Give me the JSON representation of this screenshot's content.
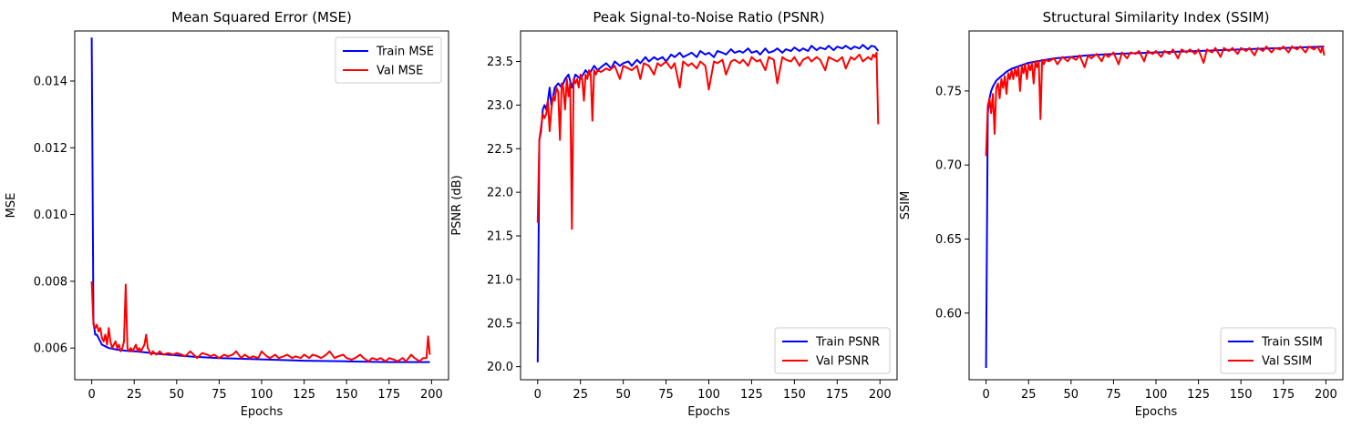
{
  "chart_data": [
    {
      "type": "line",
      "title": "Mean Squared Error (MSE)",
      "xlabel": "Epochs",
      "ylabel": "MSE",
      "xlim": [
        -10,
        210
      ],
      "ylim": [
        0.00505,
        0.0155
      ],
      "xticks": [
        0,
        25,
        50,
        75,
        100,
        125,
        150,
        175,
        200
      ],
      "xtick_labels": [
        "0",
        "25",
        "50",
        "75",
        "100",
        "125",
        "150",
        "175",
        "200"
      ],
      "yticks": [
        0.006,
        0.008,
        0.01,
        0.012,
        0.014
      ],
      "ytick_labels": [
        "0.006",
        "0.008",
        "0.010",
        "0.012",
        "0.014"
      ],
      "legend_position": "top-right",
      "series": [
        {
          "name": "Train MSE",
          "color": "#0000ff",
          "x": [
            0,
            1,
            2,
            3,
            4,
            5,
            6,
            8,
            10,
            12,
            15,
            20,
            25,
            30,
            40,
            50,
            60,
            75,
            100,
            125,
            150,
            175,
            199
          ],
          "values": [
            0.0153,
            0.0068,
            0.0064,
            0.0064,
            0.0063,
            0.0062,
            0.0061,
            0.00605,
            0.006,
            0.00598,
            0.00595,
            0.00592,
            0.0059,
            0.00588,
            0.00582,
            0.00578,
            0.00574,
            0.0057,
            0.00566,
            0.00562,
            0.0056,
            0.00558,
            0.00558
          ]
        },
        {
          "name": "Val MSE",
          "color": "#ff0000",
          "x": [
            0,
            1,
            2,
            3,
            4,
            5,
            6,
            7,
            8,
            9,
            10,
            11,
            12,
            13,
            14,
            15,
            16,
            17,
            18,
            19,
            20,
            21,
            22,
            23,
            24,
            25,
            26,
            27,
            28,
            29,
            30,
            31,
            32,
            33,
            34,
            35,
            36,
            38,
            40,
            42,
            45,
            48,
            50,
            53,
            55,
            58,
            60,
            62,
            65,
            68,
            70,
            72,
            75,
            78,
            80,
            83,
            85,
            88,
            90,
            93,
            95,
            98,
            100,
            103,
            105,
            108,
            110,
            113,
            115,
            118,
            120,
            123,
            125,
            128,
            130,
            133,
            135,
            138,
            140,
            143,
            145,
            148,
            150,
            153,
            155,
            158,
            160,
            163,
            165,
            168,
            170,
            173,
            175,
            178,
            180,
            183,
            185,
            188,
            190,
            193,
            195,
            197,
            198,
            199
          ],
          "values": [
            0.008,
            0.0067,
            0.0066,
            0.0067,
            0.0065,
            0.0066,
            0.0063,
            0.0062,
            0.0064,
            0.0061,
            0.0066,
            0.0062,
            0.006,
            0.0061,
            0.0062,
            0.006,
            0.0061,
            0.0059,
            0.006,
            0.0062,
            0.0079,
            0.006,
            0.0059,
            0.006,
            0.0059,
            0.006,
            0.0061,
            0.0059,
            0.006,
            0.0059,
            0.006,
            0.0061,
            0.0064,
            0.006,
            0.0059,
            0.0058,
            0.0059,
            0.0058,
            0.0059,
            0.0058,
            0.00585,
            0.0058,
            0.00585,
            0.0058,
            0.00575,
            0.0059,
            0.0058,
            0.0057,
            0.00585,
            0.0058,
            0.00575,
            0.0058,
            0.0057,
            0.0058,
            0.00575,
            0.0058,
            0.0059,
            0.0057,
            0.0058,
            0.0057,
            0.00575,
            0.0057,
            0.0059,
            0.00575,
            0.0057,
            0.0058,
            0.0057,
            0.00575,
            0.0058,
            0.0057,
            0.00575,
            0.0057,
            0.0058,
            0.0057,
            0.0058,
            0.00575,
            0.0057,
            0.0058,
            0.0059,
            0.0057,
            0.00575,
            0.0058,
            0.0057,
            0.00565,
            0.0057,
            0.0058,
            0.0057,
            0.0056,
            0.0057,
            0.00565,
            0.0057,
            0.0056,
            0.0057,
            0.00565,
            0.0056,
            0.0057,
            0.0056,
            0.0058,
            0.0057,
            0.0056,
            0.0057,
            0.0057,
            0.00635,
            0.0058
          ]
        }
      ]
    },
    {
      "type": "line",
      "title": "Peak Signal-to-Noise Ratio (PSNR)",
      "xlabel": "Epochs",
      "ylabel": "PSNR (dB)",
      "xlim": [
        -10,
        210
      ],
      "ylim": [
        19.85,
        23.85
      ],
      "xticks": [
        0,
        25,
        50,
        75,
        100,
        125,
        150,
        175,
        200
      ],
      "xtick_labels": [
        "0",
        "25",
        "50",
        "75",
        "100",
        "125",
        "150",
        "175",
        "200"
      ],
      "yticks": [
        20.0,
        20.5,
        21.0,
        21.5,
        22.0,
        22.5,
        23.0,
        23.5
      ],
      "ytick_labels": [
        "20.0",
        "20.5",
        "21.0",
        "21.5",
        "22.0",
        "22.5",
        "23.0",
        "23.5"
      ],
      "legend_position": "bottom-right",
      "series": [
        {
          "name": "Train PSNR",
          "color": "#0000ff",
          "x": [
            0,
            1,
            2,
            3,
            4,
            5,
            6,
            7,
            8,
            9,
            10,
            12,
            14,
            16,
            18,
            20,
            22,
            25,
            28,
            30,
            33,
            35,
            38,
            40,
            43,
            45,
            48,
            50,
            53,
            55,
            58,
            60,
            63,
            65,
            68,
            70,
            73,
            75,
            78,
            80,
            83,
            85,
            88,
            90,
            93,
            95,
            98,
            100,
            103,
            105,
            108,
            110,
            113,
            115,
            118,
            120,
            123,
            125,
            128,
            130,
            133,
            135,
            138,
            140,
            143,
            145,
            148,
            150,
            153,
            155,
            158,
            160,
            163,
            165,
            168,
            170,
            173,
            175,
            178,
            180,
            183,
            185,
            188,
            190,
            193,
            195,
            197,
            199
          ],
          "values": [
            20.05,
            22.6,
            22.7,
            22.95,
            23.0,
            22.95,
            23.05,
            23.2,
            23.0,
            23.1,
            23.2,
            23.25,
            23.2,
            23.3,
            23.35,
            23.2,
            23.35,
            23.3,
            23.4,
            23.35,
            23.45,
            23.4,
            23.45,
            23.48,
            23.42,
            23.5,
            23.45,
            23.48,
            23.5,
            23.45,
            23.52,
            23.48,
            23.55,
            23.5,
            23.55,
            23.52,
            23.55,
            23.5,
            23.58,
            23.55,
            23.6,
            23.55,
            23.58,
            23.6,
            23.55,
            23.62,
            23.58,
            23.6,
            23.55,
            23.62,
            23.6,
            23.58,
            23.64,
            23.6,
            23.62,
            23.6,
            23.65,
            23.6,
            23.62,
            23.58,
            23.65,
            23.6,
            23.62,
            23.65,
            23.6,
            23.64,
            23.62,
            23.66,
            23.62,
            23.65,
            23.62,
            23.68,
            23.63,
            23.66,
            23.64,
            23.68,
            23.63,
            23.67,
            23.65,
            23.68,
            23.64,
            23.67,
            23.65,
            23.69,
            23.64,
            23.68,
            23.67,
            23.62
          ]
        },
        {
          "name": "Val PSNR",
          "color": "#ff0000",
          "x": [
            0,
            1,
            2,
            3,
            4,
            5,
            6,
            7,
            8,
            9,
            10,
            11,
            12,
            13,
            14,
            15,
            16,
            17,
            18,
            19,
            20,
            21,
            22,
            23,
            24,
            25,
            26,
            27,
            28,
            29,
            30,
            31,
            32,
            33,
            34,
            35,
            37,
            40,
            42,
            45,
            48,
            50,
            53,
            55,
            58,
            60,
            62,
            65,
            68,
            70,
            72,
            75,
            78,
            80,
            83,
            85,
            88,
            90,
            93,
            95,
            98,
            100,
            103,
            105,
            108,
            110,
            113,
            115,
            118,
            120,
            123,
            125,
            128,
            130,
            133,
            135,
            138,
            140,
            143,
            145,
            148,
            150,
            153,
            155,
            158,
            160,
            163,
            165,
            168,
            170,
            173,
            175,
            178,
            180,
            183,
            185,
            188,
            190,
            193,
            195,
            196,
            197,
            198,
            199
          ],
          "values": [
            21.65,
            22.6,
            22.75,
            22.9,
            22.85,
            22.9,
            23.05,
            22.7,
            22.95,
            23.1,
            23.05,
            23.2,
            23.15,
            22.6,
            23.25,
            23.2,
            22.95,
            23.3,
            23.1,
            23.25,
            21.58,
            23.3,
            23.25,
            23.3,
            23.2,
            23.35,
            23.3,
            23.05,
            23.35,
            23.3,
            23.4,
            23.35,
            22.82,
            23.4,
            23.35,
            23.4,
            23.38,
            23.42,
            23.4,
            23.45,
            23.3,
            23.45,
            23.42,
            23.4,
            23.45,
            23.3,
            23.48,
            23.45,
            23.35,
            23.48,
            23.45,
            23.5,
            23.42,
            23.48,
            23.2,
            23.5,
            23.45,
            23.48,
            23.42,
            23.5,
            23.45,
            23.18,
            23.5,
            23.48,
            23.52,
            23.35,
            23.5,
            23.52,
            23.48,
            23.52,
            23.45,
            23.55,
            23.5,
            23.52,
            23.4,
            23.55,
            23.52,
            23.25,
            23.55,
            23.52,
            23.5,
            23.55,
            23.45,
            23.52,
            23.55,
            23.5,
            23.55,
            23.52,
            23.4,
            23.55,
            23.52,
            23.5,
            23.55,
            23.42,
            23.55,
            23.52,
            23.58,
            23.5,
            23.55,
            23.52,
            23.58,
            23.55,
            23.6,
            22.78
          ]
        }
      ]
    },
    {
      "type": "line",
      "title": "Structural Similarity Index (SSIM)",
      "xlabel": "Epochs",
      "ylabel": "SSIM",
      "xlim": [
        -10,
        210
      ],
      "ylim": [
        0.555,
        0.7905
      ],
      "xticks": [
        0,
        25,
        50,
        75,
        100,
        125,
        150,
        175,
        200
      ],
      "xtick_labels": [
        "0",
        "25",
        "50",
        "75",
        "100",
        "125",
        "150",
        "175",
        "200"
      ],
      "yticks": [
        0.6,
        0.65,
        0.7,
        0.75
      ],
      "ytick_labels": [
        "0.60",
        "0.65",
        "0.70",
        "0.75"
      ],
      "legend_position": "bottom-right",
      "series": [
        {
          "name": "Train SSIM",
          "color": "#0000ff",
          "x": [
            0,
            1,
            2,
            3,
            4,
            5,
            6,
            8,
            10,
            12,
            15,
            20,
            25,
            30,
            35,
            40,
            50,
            60,
            75,
            100,
            125,
            150,
            175,
            199
          ],
          "values": [
            0.563,
            0.735,
            0.745,
            0.75,
            0.753,
            0.755,
            0.757,
            0.759,
            0.761,
            0.763,
            0.765,
            0.767,
            0.769,
            0.77,
            0.771,
            0.772,
            0.773,
            0.774,
            0.775,
            0.776,
            0.777,
            0.778,
            0.779,
            0.78
          ]
        },
        {
          "name": "Val SSIM",
          "color": "#ff0000",
          "x": [
            0,
            1,
            2,
            3,
            4,
            5,
            6,
            7,
            8,
            9,
            10,
            11,
            12,
            13,
            14,
            15,
            16,
            17,
            18,
            19,
            20,
            21,
            22,
            23,
            24,
            25,
            26,
            27,
            28,
            29,
            30,
            31,
            32,
            33,
            34,
            35,
            37,
            40,
            42,
            45,
            48,
            50,
            53,
            55,
            58,
            60,
            62,
            65,
            68,
            70,
            72,
            75,
            78,
            80,
            83,
            85,
            88,
            90,
            93,
            95,
            98,
            100,
            103,
            105,
            108,
            110,
            113,
            115,
            118,
            120,
            123,
            125,
            128,
            130,
            133,
            135,
            138,
            140,
            143,
            145,
            148,
            150,
            153,
            155,
            158,
            160,
            163,
            165,
            168,
            170,
            173,
            175,
            178,
            180,
            183,
            185,
            188,
            190,
            193,
            195,
            197,
            198,
            199
          ],
          "values": [
            0.706,
            0.74,
            0.745,
            0.735,
            0.748,
            0.721,
            0.752,
            0.755,
            0.745,
            0.758,
            0.752,
            0.76,
            0.748,
            0.762,
            0.758,
            0.764,
            0.758,
            0.765,
            0.76,
            0.766,
            0.75,
            0.767,
            0.762,
            0.768,
            0.758,
            0.768,
            0.764,
            0.769,
            0.755,
            0.77,
            0.766,
            0.77,
            0.731,
            0.771,
            0.768,
            0.771,
            0.77,
            0.772,
            0.768,
            0.773,
            0.77,
            0.773,
            0.771,
            0.774,
            0.766,
            0.774,
            0.772,
            0.775,
            0.77,
            0.775,
            0.773,
            0.776,
            0.768,
            0.776,
            0.772,
            0.776,
            0.775,
            0.777,
            0.77,
            0.777,
            0.775,
            0.777,
            0.773,
            0.777,
            0.775,
            0.778,
            0.772,
            0.778,
            0.776,
            0.778,
            0.775,
            0.778,
            0.769,
            0.778,
            0.776,
            0.779,
            0.773,
            0.779,
            0.777,
            0.779,
            0.775,
            0.779,
            0.777,
            0.779,
            0.774,
            0.779,
            0.777,
            0.78,
            0.776,
            0.779,
            0.778,
            0.78,
            0.776,
            0.78,
            0.778,
            0.78,
            0.776,
            0.78,
            0.778,
            0.78,
            0.776,
            0.78,
            0.774
          ]
        }
      ]
    }
  ]
}
